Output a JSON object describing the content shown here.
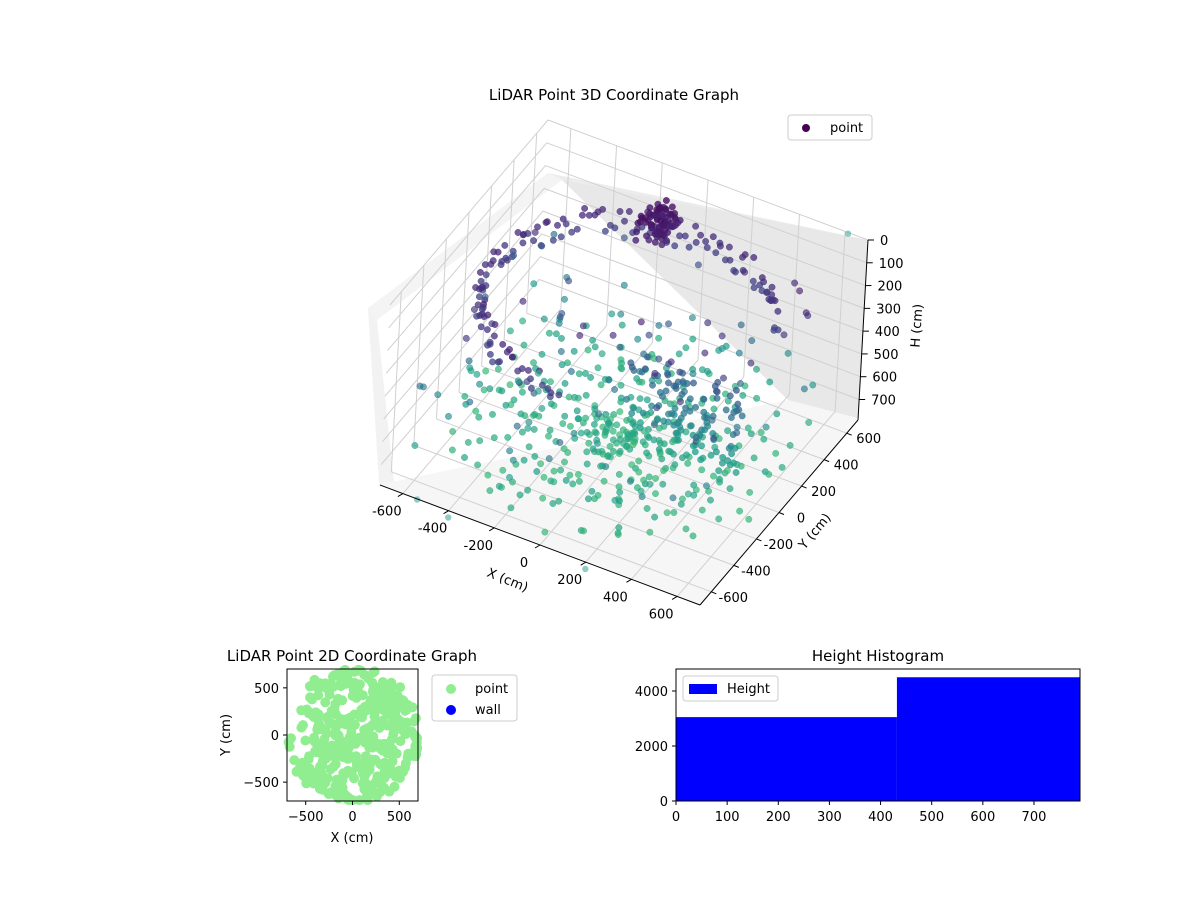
{
  "chart_data": [
    {
      "type": "scatter",
      "dimensions": 3,
      "title": "LiDAR Point 3D Coordinate Graph",
      "xlabel": "X (cm)",
      "ylabel": "Y (cm)",
      "zlabel": "H (cm)",
      "xlim": [
        -700,
        700
      ],
      "ylim": [
        -700,
        700
      ],
      "zlim": [
        0,
        790
      ],
      "z_inverted": true,
      "xticks": [
        "-600",
        "-400",
        "-200",
        "0",
        "200",
        "400",
        "600"
      ],
      "yticks": [
        "-600",
        "-400",
        "-200",
        "0",
        "200",
        "400",
        "600"
      ],
      "zticks": [
        "0",
        "100",
        "200",
        "300",
        "400",
        "500",
        "600",
        "700"
      ],
      "grid": true,
      "colormap": "viridis (colored by height)",
      "legend": {
        "placement": "top-right",
        "entries": [
          {
            "name": "point",
            "color": "#440154"
          }
        ]
      },
      "series": [
        {
          "name": "point",
          "description_of_shape": "dense room-scan point cloud: radial floor rays, curved wall arc, overhead fixture cluster",
          "sample_points": [
            {
              "x": -600,
              "y": 0,
              "h": 150
            },
            {
              "x": -550,
              "y": 300,
              "h": 200
            },
            {
              "x": -400,
              "y": 500,
              "h": 180
            },
            {
              "x": -200,
              "y": 600,
              "h": 170
            },
            {
              "x": 0,
              "y": 650,
              "h": 160
            },
            {
              "x": 200,
              "y": 600,
              "h": 150
            },
            {
              "x": 300,
              "y": 450,
              "h": 150
            },
            {
              "x": 0,
              "y": 0,
              "h": 600
            },
            {
              "x": 100,
              "y": -100,
              "h": 650
            },
            {
              "x": 600,
              "y": 600,
              "h": 300
            },
            {
              "x": 650,
              "y": -600,
              "h": 620
            },
            {
              "x": 400,
              "y": -500,
              "h": 700
            }
          ]
        }
      ]
    },
    {
      "type": "scatter",
      "dimensions": 2,
      "title": "LiDAR Point 2D Coordinate Graph",
      "xlabel": "X (cm)",
      "ylabel": "Y (cm)",
      "xlim": [
        -700,
        700
      ],
      "ylim": [
        -700,
        700
      ],
      "xticks": [
        "−500",
        "0",
        "500"
      ],
      "yticks": [
        "500",
        "0",
        "−500"
      ],
      "legend": {
        "placement": "outside-right",
        "entries": [
          {
            "name": "point",
            "color": "#90ee90"
          },
          {
            "name": "wall",
            "color": "#0000ff"
          }
        ]
      },
      "series": [
        {
          "name": "point",
          "color": "#90ee90",
          "description_of_shape": "filled green blob covering most of the area"
        },
        {
          "name": "wall",
          "color": "#0000ff",
          "values": []
        }
      ]
    },
    {
      "type": "histogram",
      "title": "Height Histogram",
      "xlim": [
        0,
        790
      ],
      "ylim": [
        0,
        4800
      ],
      "xticks": [
        "0",
        "100",
        "200",
        "300",
        "400",
        "500",
        "600",
        "700"
      ],
      "yticks": [
        "0",
        "2000",
        "4000"
      ],
      "legend": {
        "placement": "top-left",
        "entries": [
          {
            "name": "Height",
            "color": "#0000ff"
          }
        ]
      },
      "bins": [
        {
          "from": 0,
          "to": 432,
          "count": 3050
        },
        {
          "from": 432,
          "to": 790,
          "count": 4500
        }
      ],
      "color": "#0000ff"
    }
  ]
}
